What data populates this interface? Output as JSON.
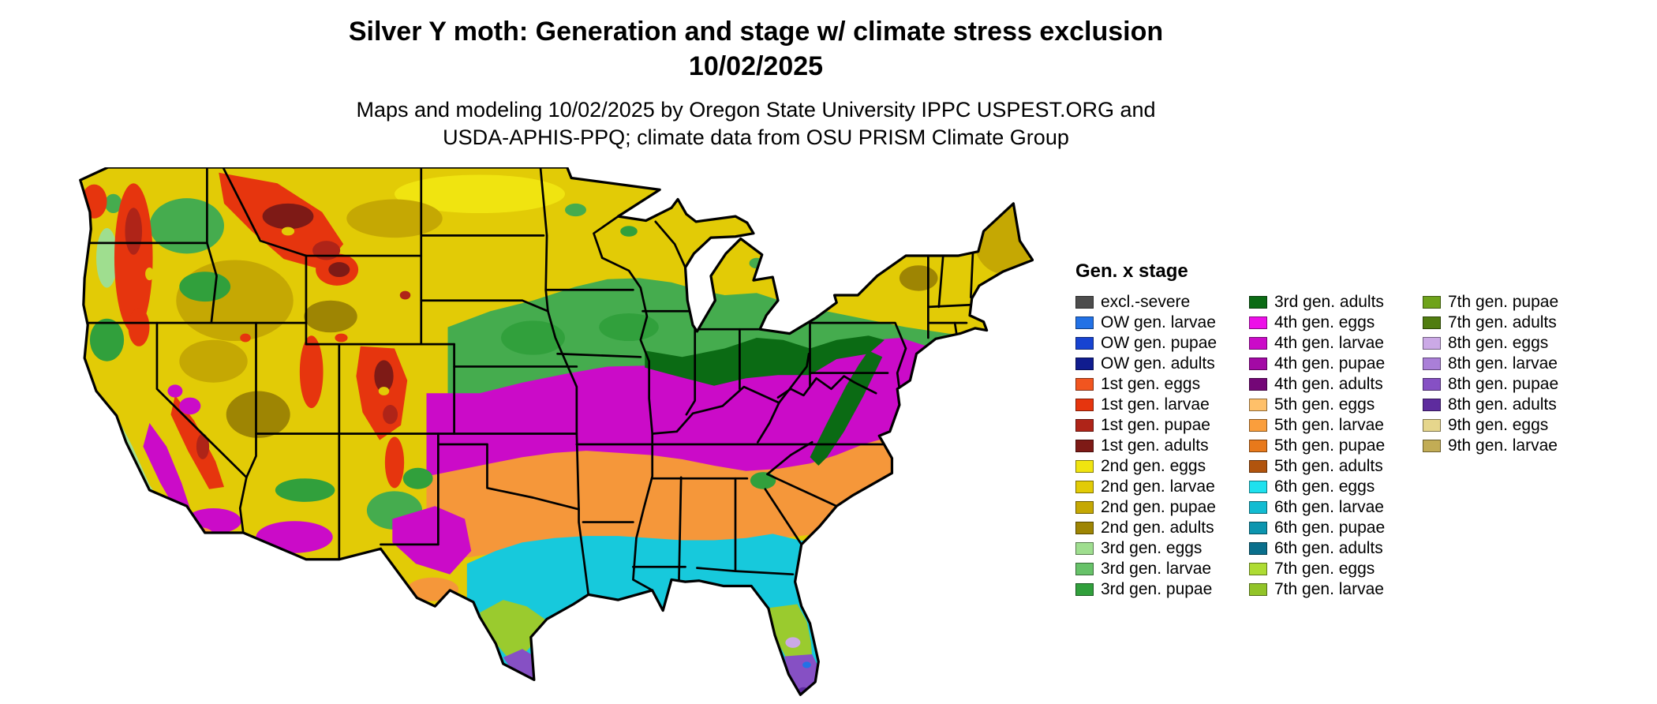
{
  "header": {
    "title": "Silver Y moth: Generation and stage w/ climate stress exclusion",
    "date": "10/02/2025",
    "credit_line1": "Maps and modeling 10/02/2025 by Oregon State University IPPC USPEST.ORG and",
    "credit_line2": "USDA-APHIS-PPQ; climate data from OSU PRISM Climate Group"
  },
  "legend": {
    "title": "Gen. x stage",
    "columns": [
      [
        {
          "label": "excl.-severe",
          "color": "#4D4D4D"
        },
        {
          "label": "OW gen. larvae",
          "color": "#2271E6"
        },
        {
          "label": "OW gen. pupae",
          "color": "#1743D1"
        },
        {
          "label": "OW gen. adults",
          "color": "#101C8F"
        },
        {
          "label": "1st gen. eggs",
          "color": "#F1551F"
        },
        {
          "label": "1st gen. larvae",
          "color": "#E6350E"
        },
        {
          "label": "1st gen. pupae",
          "color": "#AF2418"
        },
        {
          "label": "1st gen. adults",
          "color": "#7E1A16"
        },
        {
          "label": "2nd gen. eggs",
          "color": "#F0E410"
        },
        {
          "label": "2nd gen. larvae",
          "color": "#E2CB06"
        },
        {
          "label": "2nd gen. pupae",
          "color": "#C5A803"
        },
        {
          "label": "2nd gen. adults",
          "color": "#9E8503"
        },
        {
          "label": "3rd gen. eggs",
          "color": "#9FDE8F"
        },
        {
          "label": "3rd gen. larvae",
          "color": "#67C269"
        },
        {
          "label": "3rd gen. pupae",
          "color": "#31A03C"
        }
      ],
      [
        {
          "label": "3rd gen. adults",
          "color": "#0B6B14"
        },
        {
          "label": "4th gen. eggs",
          "color": "#ED0FE8"
        },
        {
          "label": "4th gen. larvae",
          "color": "#CB0BC8"
        },
        {
          "label": "4th gen. pupae",
          "color": "#A309A5"
        },
        {
          "label": "4th gen. adults",
          "color": "#740677"
        },
        {
          "label": "5th gen. eggs",
          "color": "#FFC069"
        },
        {
          "label": "5th gen. larvae",
          "color": "#FA9E3C"
        },
        {
          "label": "5th gen. pupae",
          "color": "#E8791B"
        },
        {
          "label": "5th gen. adults",
          "color": "#B1540D"
        },
        {
          "label": "6th gen. eggs",
          "color": "#1EE1EE"
        },
        {
          "label": "6th gen. larvae",
          "color": "#12BCD2"
        },
        {
          "label": "6th gen. pupae",
          "color": "#0C95AF"
        },
        {
          "label": "6th gen. adults",
          "color": "#0A6F8C"
        },
        {
          "label": "7th gen. eggs",
          "color": "#AEDC33"
        },
        {
          "label": "7th gen. larvae",
          "color": "#92C428"
        }
      ],
      [
        {
          "label": "7th gen. pupae",
          "color": "#6FA31B"
        },
        {
          "label": "7th gen. adults",
          "color": "#517D10"
        },
        {
          "label": "8th gen. eggs",
          "color": "#CBA9E6"
        },
        {
          "label": "8th gen. larvae",
          "color": "#AA7FD8"
        },
        {
          "label": "8th gen. pupae",
          "color": "#8650C4"
        },
        {
          "label": "8th gen. adults",
          "color": "#5E2C9E"
        },
        {
          "label": "9th gen. eggs",
          "color": "#E6D68C"
        },
        {
          "label": "9th gen. larvae",
          "color": "#C2AC55"
        }
      ]
    ]
  }
}
